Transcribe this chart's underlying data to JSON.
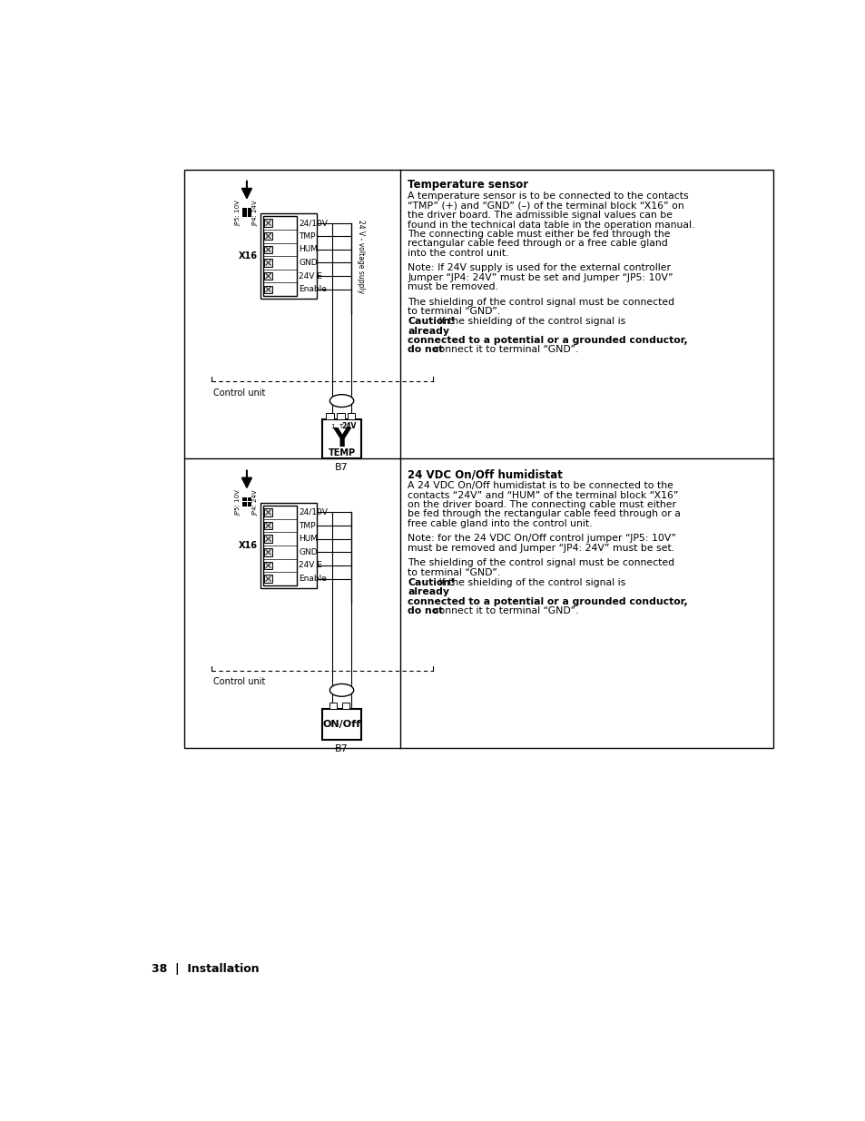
{
  "bg_color": "#ffffff",
  "border_color": "#000000",
  "text_color": "#000000",
  "footer_text": "38  |  Installation",
  "top_section": {
    "title": "Temperature sensor",
    "body_text": "A temperature sensor is to be connected to the contacts “TMP” (+) and “GND” (–) of the terminal block “X16” on the driver board. The admissible signal values can be found in the technical data table in the operation manual. The connecting cable must either be fed through the rectangular cable feed through or a free cable gland into the control unit.",
    "note_text": "Note: If 24V supply is used for the external controller Jumper “JP4: 24V” must be set and Jumper “JP5: 10V” must be removed.",
    "shielding_text": "The shielding of the control signal must be connected to terminal “GND”.",
    "caution_intro": "Caution!",
    "caution_rest": " If the shielding of the control signal is ",
    "caution_bold": "already\nconnected to a potential or a grounded conductor,",
    "caution_end": "\ndo not",
    "caution_end2": " connect it to terminal “GND”.",
    "diagram_labels": {
      "terminal_rows": [
        "24/10V",
        "TMP",
        "HUM",
        "GND",
        "24V E",
        "Enable"
      ],
      "x16": "X16",
      "jp_left": "JP5: 10V",
      "jp_right": "JP4: 24V",
      "control_unit": "Control unit",
      "voltage_supply": "24 V - voltage supply",
      "connector_label": "Y",
      "connector_sub": "TEMP",
      "connector_ref": "B7",
      "connector_voltage": "24V"
    }
  },
  "bottom_section": {
    "title": "24 VDC On/Off humidistat",
    "body_text": "A 24 VDC On/Off humidistat is to be connected to the contacts “24V” and “HUM” of the terminal block “X16” on the driver board. The connecting cable must either be fed through the rectangular cable feed through or a free cable gland into the control unit.",
    "note_text": "Note: for the 24 VDC On/Off control jumper “JP5: 10V” must be removed and Jumper “JP4: 24V” must be set.",
    "shielding_text": "The shielding of the control signal must be connected to terminal “GND”.",
    "caution_intro": "Caution!",
    "caution_rest": " If the shielding of the control signal is ",
    "caution_bold": "already\nconnected to a potential or a grounded conductor,",
    "caution_end": "\ndo not",
    "caution_end2": " connect it to terminal “GND”.",
    "diagram_labels": {
      "terminal_rows": [
        "24/10V",
        "TMP",
        "HUM",
        "GND",
        "24V E",
        "Enable"
      ],
      "x16": "X16",
      "jp_left": "JP5: 10V",
      "jp_right": "JP4: 24V",
      "control_unit": "Control unit",
      "connector_label": "ON/Off",
      "connector_ref": "B7"
    }
  }
}
